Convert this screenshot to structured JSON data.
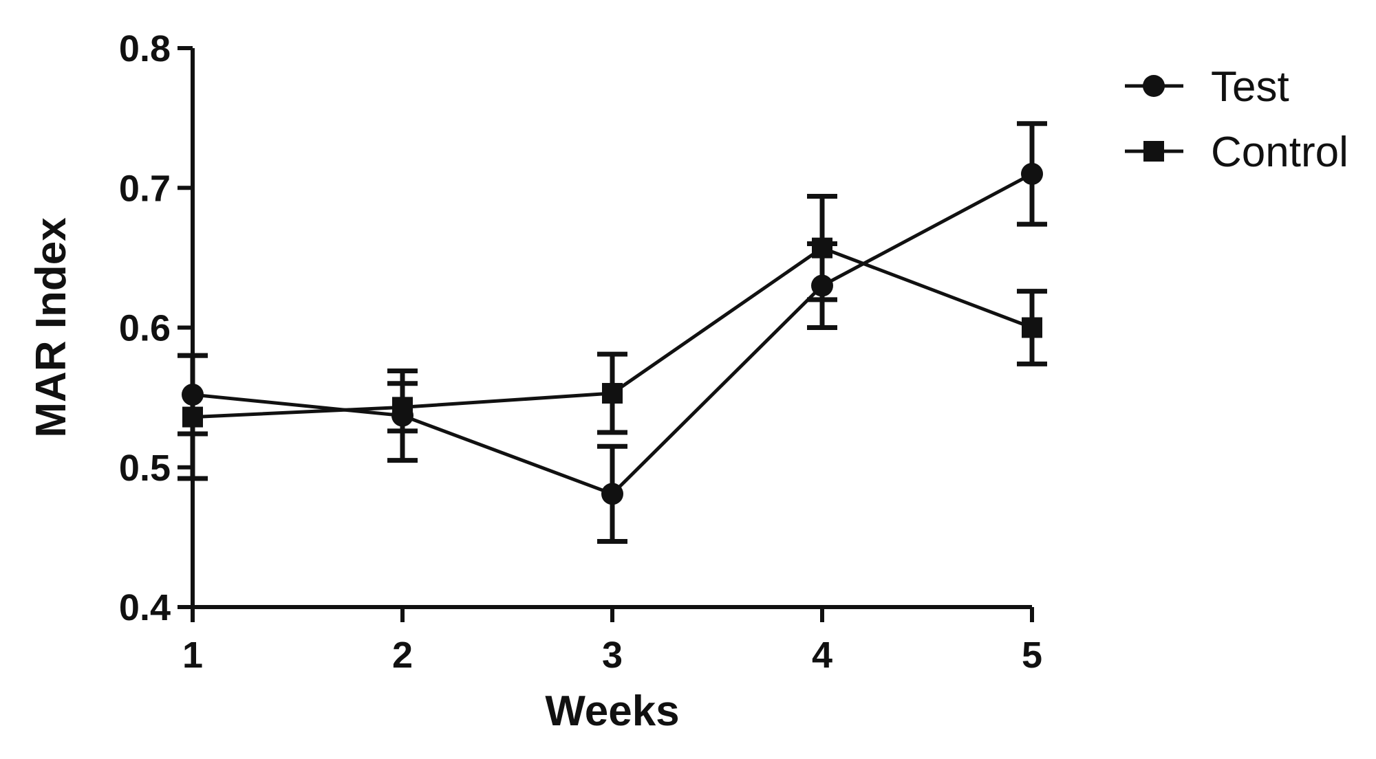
{
  "chart_data": {
    "type": "line",
    "title": "",
    "xlabel": "Weeks",
    "ylabel": "MAR Index",
    "x": [
      1,
      2,
      3,
      4,
      5
    ],
    "xticks": [
      "1",
      "2",
      "3",
      "4",
      "5"
    ],
    "yticks": [
      "0.4",
      "0.5",
      "0.6",
      "0.7",
      "0.8"
    ],
    "xlim": [
      1,
      5
    ],
    "ylim": [
      0.4,
      0.8
    ],
    "grid": false,
    "legend_position": "top-right outside",
    "series": [
      {
        "name": "Test",
        "marker": "circle",
        "color": "#111111",
        "values": [
          0.552,
          0.537,
          0.481,
          0.63,
          0.71
        ],
        "errors": [
          0.028,
          0.032,
          0.034,
          0.03,
          0.036
        ]
      },
      {
        "name": "Control",
        "marker": "square",
        "color": "#111111",
        "values": [
          0.536,
          0.543,
          0.553,
          0.657,
          0.6
        ],
        "errors": [
          0.044,
          0.017,
          0.028,
          0.037,
          0.026
        ]
      }
    ]
  }
}
